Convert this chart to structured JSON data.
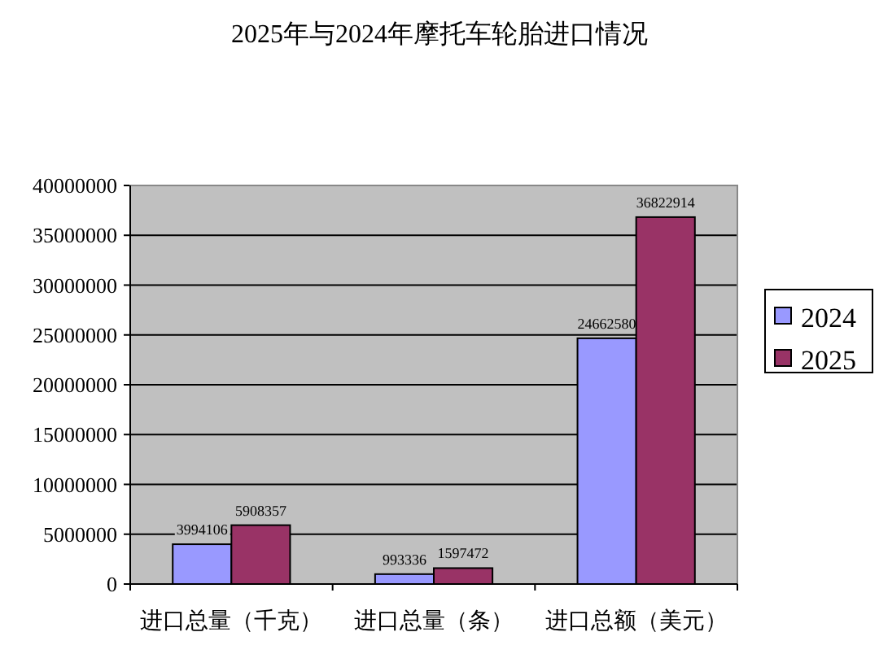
{
  "chart_data": {
    "type": "bar",
    "title": "2025年与2024年摩托车轮胎进口情况",
    "categories": [
      "进口总量（千克）",
      "进口总量（条）",
      "进口总额（美元）"
    ],
    "series": [
      {
        "name": "2024",
        "color": "#9999ff",
        "values": [
          3994106,
          993336,
          24662580
        ]
      },
      {
        "name": "2025",
        "color": "#993366",
        "values": [
          5908357,
          1597472,
          36822914
        ]
      }
    ],
    "ylim": [
      0,
      40000000
    ],
    "yticks": [
      0,
      5000000,
      10000000,
      15000000,
      20000000,
      25000000,
      30000000,
      35000000,
      40000000
    ],
    "grid": "y",
    "legend": "right",
    "data_labels": true
  }
}
